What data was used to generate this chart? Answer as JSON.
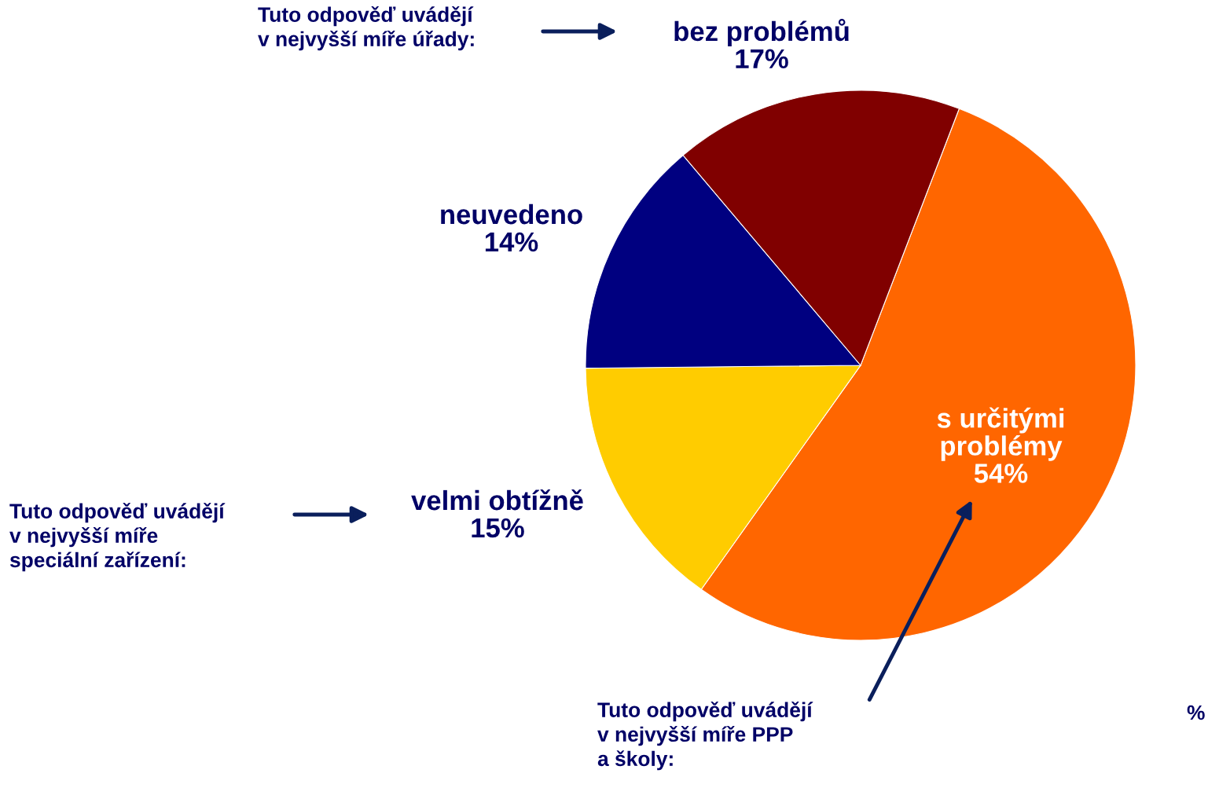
{
  "chart_data": {
    "type": "pie",
    "categories": [
      "s určitými problémy",
      "velmi obtížně",
      "neuvedeno",
      "bez problémů"
    ],
    "values": [
      54,
      15,
      14,
      17
    ],
    "colors": [
      "#ff6600",
      "#ffcc00",
      "#000080",
      "#800000"
    ],
    "value_labels": [
      "54%",
      "15%",
      "14%",
      "17%"
    ],
    "annotations": [
      "Tuto odpověď uvádějí\nv nejvyšší míře úřady:",
      "Tuto odpověď uvádějí\nv nejvyšší míře\nspeciální zařízení:",
      "Tuto odpověď uvádějí\nv nejvyšší míře PPP\na školy:",
      "%"
    ]
  }
}
